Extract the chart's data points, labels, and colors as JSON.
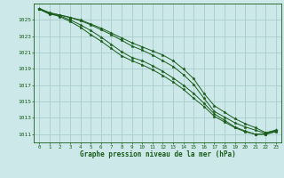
{
  "xlabel": "Graphe pression niveau de la mer (hPa)",
  "xlim": [
    -0.5,
    23.5
  ],
  "ylim": [
    1010.0,
    1027.0
  ],
  "yticks": [
    1011,
    1013,
    1015,
    1017,
    1019,
    1021,
    1023,
    1025
  ],
  "xticks": [
    0,
    1,
    2,
    3,
    4,
    5,
    6,
    7,
    8,
    9,
    10,
    11,
    12,
    13,
    14,
    15,
    16,
    17,
    18,
    19,
    20,
    21,
    22,
    23
  ],
  "background_color": "#cce8e8",
  "grid_color": "#aacccc",
  "line_color": "#1a5c1a",
  "line1": [
    1026.3,
    1025.8,
    1025.6,
    1025.3,
    1025.0,
    1024.5,
    1024.0,
    1023.4,
    1022.8,
    1022.2,
    1021.7,
    1021.2,
    1020.7,
    1020.0,
    1019.0,
    1017.8,
    1016.0,
    1014.5,
    1013.7,
    1012.9,
    1012.3,
    1011.8,
    1011.2,
    1011.5
  ],
  "line2": [
    1026.3,
    1025.7,
    1025.5,
    1025.0,
    1024.4,
    1023.7,
    1022.9,
    1022.0,
    1021.1,
    1020.4,
    1020.0,
    1019.4,
    1018.7,
    1017.9,
    1017.0,
    1016.0,
    1014.8,
    1013.5,
    1012.7,
    1011.9,
    1011.4,
    1011.0,
    1011.0,
    1011.4
  ],
  "line3": [
    1026.4,
    1025.8,
    1025.4,
    1024.8,
    1024.1,
    1023.2,
    1022.4,
    1021.5,
    1020.6,
    1020.0,
    1019.5,
    1018.9,
    1018.2,
    1017.4,
    1016.5,
    1015.4,
    1014.4,
    1013.2,
    1012.5,
    1011.8,
    1011.3,
    1011.0,
    1011.0,
    1011.3
  ],
  "line4": [
    1026.4,
    1025.9,
    1025.6,
    1025.3,
    1024.9,
    1024.4,
    1023.8,
    1023.2,
    1022.5,
    1021.8,
    1021.3,
    1020.7,
    1020.0,
    1019.3,
    1018.3,
    1017.1,
    1015.4,
    1013.8,
    1013.1,
    1012.4,
    1011.9,
    1011.5,
    1011.1,
    1011.5
  ]
}
